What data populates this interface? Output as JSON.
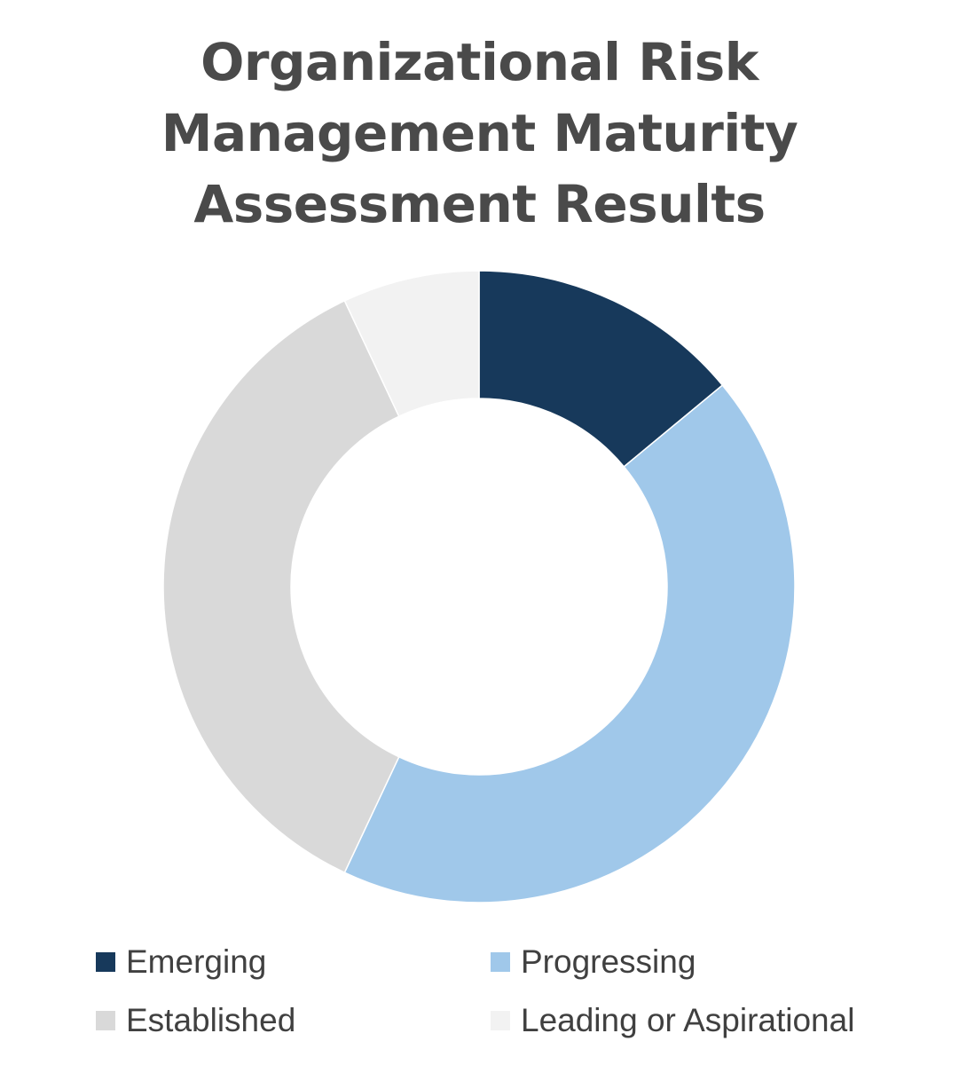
{
  "chart_data": {
    "type": "pie",
    "title_lines": [
      "Organizational Risk",
      "Management Maturity",
      "Assessment Results"
    ],
    "donut": true,
    "categories": [
      "Emerging",
      "Progressing",
      "Established",
      "Leading or Aspirational"
    ],
    "values": [
      14,
      43,
      36,
      7
    ],
    "colors": [
      "#17395b",
      "#a0c8ea",
      "#d9d9d9",
      "#f2f2f2"
    ],
    "legend_position": "bottom"
  }
}
